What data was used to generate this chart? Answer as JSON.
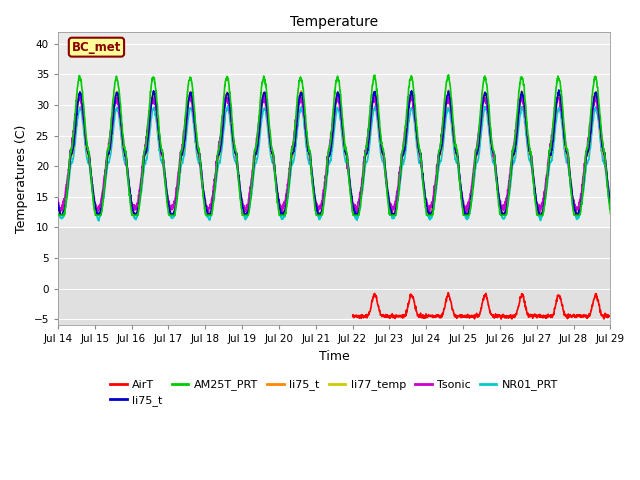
{
  "title": "Temperature",
  "xlabel": "Time",
  "ylabel": "Temperatures (C)",
  "ylim": [
    -6,
    42
  ],
  "yticks": [
    -5,
    0,
    5,
    10,
    15,
    20,
    25,
    30,
    35,
    40
  ],
  "xlim_start": 0,
  "xlim_end": 15,
  "xtick_labels": [
    "Jul 14",
    "Jul 15",
    "Jul 16",
    "Jul 17",
    "Jul 18",
    "Jul 19",
    "Jul 20",
    "Jul 21",
    "Jul 22",
    "Jul 23",
    "Jul 24",
    "Jul 25",
    "Jul 26",
    "Jul 27",
    "Jul 28",
    "Jul 29"
  ],
  "annotation_text": "BC_met",
  "annotation_color": "#8B0000",
  "annotation_bg": "#FFFF99",
  "bg_color_upper": "#EBEBEB",
  "bg_color_lower": "#E0E0E0",
  "series": {
    "AirT": {
      "color": "#FF0000",
      "lw": 1.2
    },
    "li75_t": {
      "color": "#0000CC",
      "lw": 1.2
    },
    "AM25T_PRT": {
      "color": "#00CC00",
      "lw": 1.2
    },
    "li75_t2": {
      "color": "#FF8800",
      "lw": 1.2
    },
    "li77_temp": {
      "color": "#CCCC00",
      "lw": 1.2
    },
    "Tsonic": {
      "color": "#CC00CC",
      "lw": 1.2
    },
    "NR01_PRT": {
      "color": "#00CCCC",
      "lw": 1.2
    }
  },
  "legend_entries": [
    "AirT",
    "li75_t",
    "AM25T_PRT",
    "li75_t",
    "li77_temp",
    "Tsonic",
    "NR01_PRT"
  ],
  "legend_colors": [
    "#FF0000",
    "#0000CC",
    "#00CC00",
    "#FF8800",
    "#CCCC00",
    "#CC00CC",
    "#00CCCC"
  ]
}
